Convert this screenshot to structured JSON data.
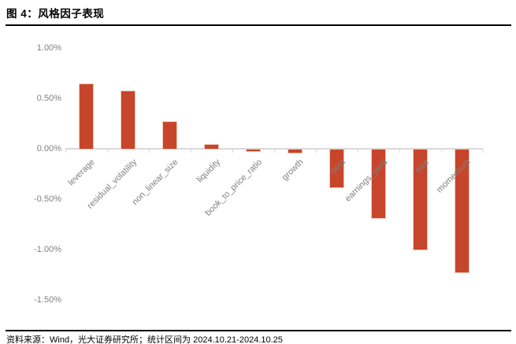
{
  "header": {
    "title": "图 4：风格因子表现"
  },
  "footer": {
    "source_note": "资料来源：Wind，光大证券研究所；统计区间为 2024.10.21-2024.10.25"
  },
  "chart_data": {
    "type": "bar",
    "title": "风格因子表现",
    "categories": [
      "leverage",
      "residual_volatility",
      "non_linear_size",
      "liquidity",
      "book_to_price_ratio",
      "growth",
      "beta",
      "earnings_yield",
      "size",
      "momentum"
    ],
    "values": [
      0.65,
      0.58,
      0.27,
      0.05,
      -0.02,
      -0.04,
      -0.38,
      -0.69,
      -1.0,
      -1.23
    ],
    "value_unit": "%",
    "xlabel": "",
    "ylabel": "",
    "ylim": [
      -1.5,
      1.0
    ],
    "yticks": [
      {
        "value": 1.0,
        "label": "1.00%"
      },
      {
        "value": 0.5,
        "label": "0.50%"
      },
      {
        "value": 0.0,
        "label": "0.00%"
      },
      {
        "value": -0.5,
        "label": "-0.50%"
      },
      {
        "value": -1.0,
        "label": "-1.00%"
      },
      {
        "value": -1.5,
        "label": "-1.50%"
      }
    ],
    "grid": false,
    "legend": "none",
    "bar_color": "#c7452b",
    "bar_edge_color": "#eec8b6",
    "axis_color": "#d9d9d9",
    "tick_label_color": "#808080"
  }
}
